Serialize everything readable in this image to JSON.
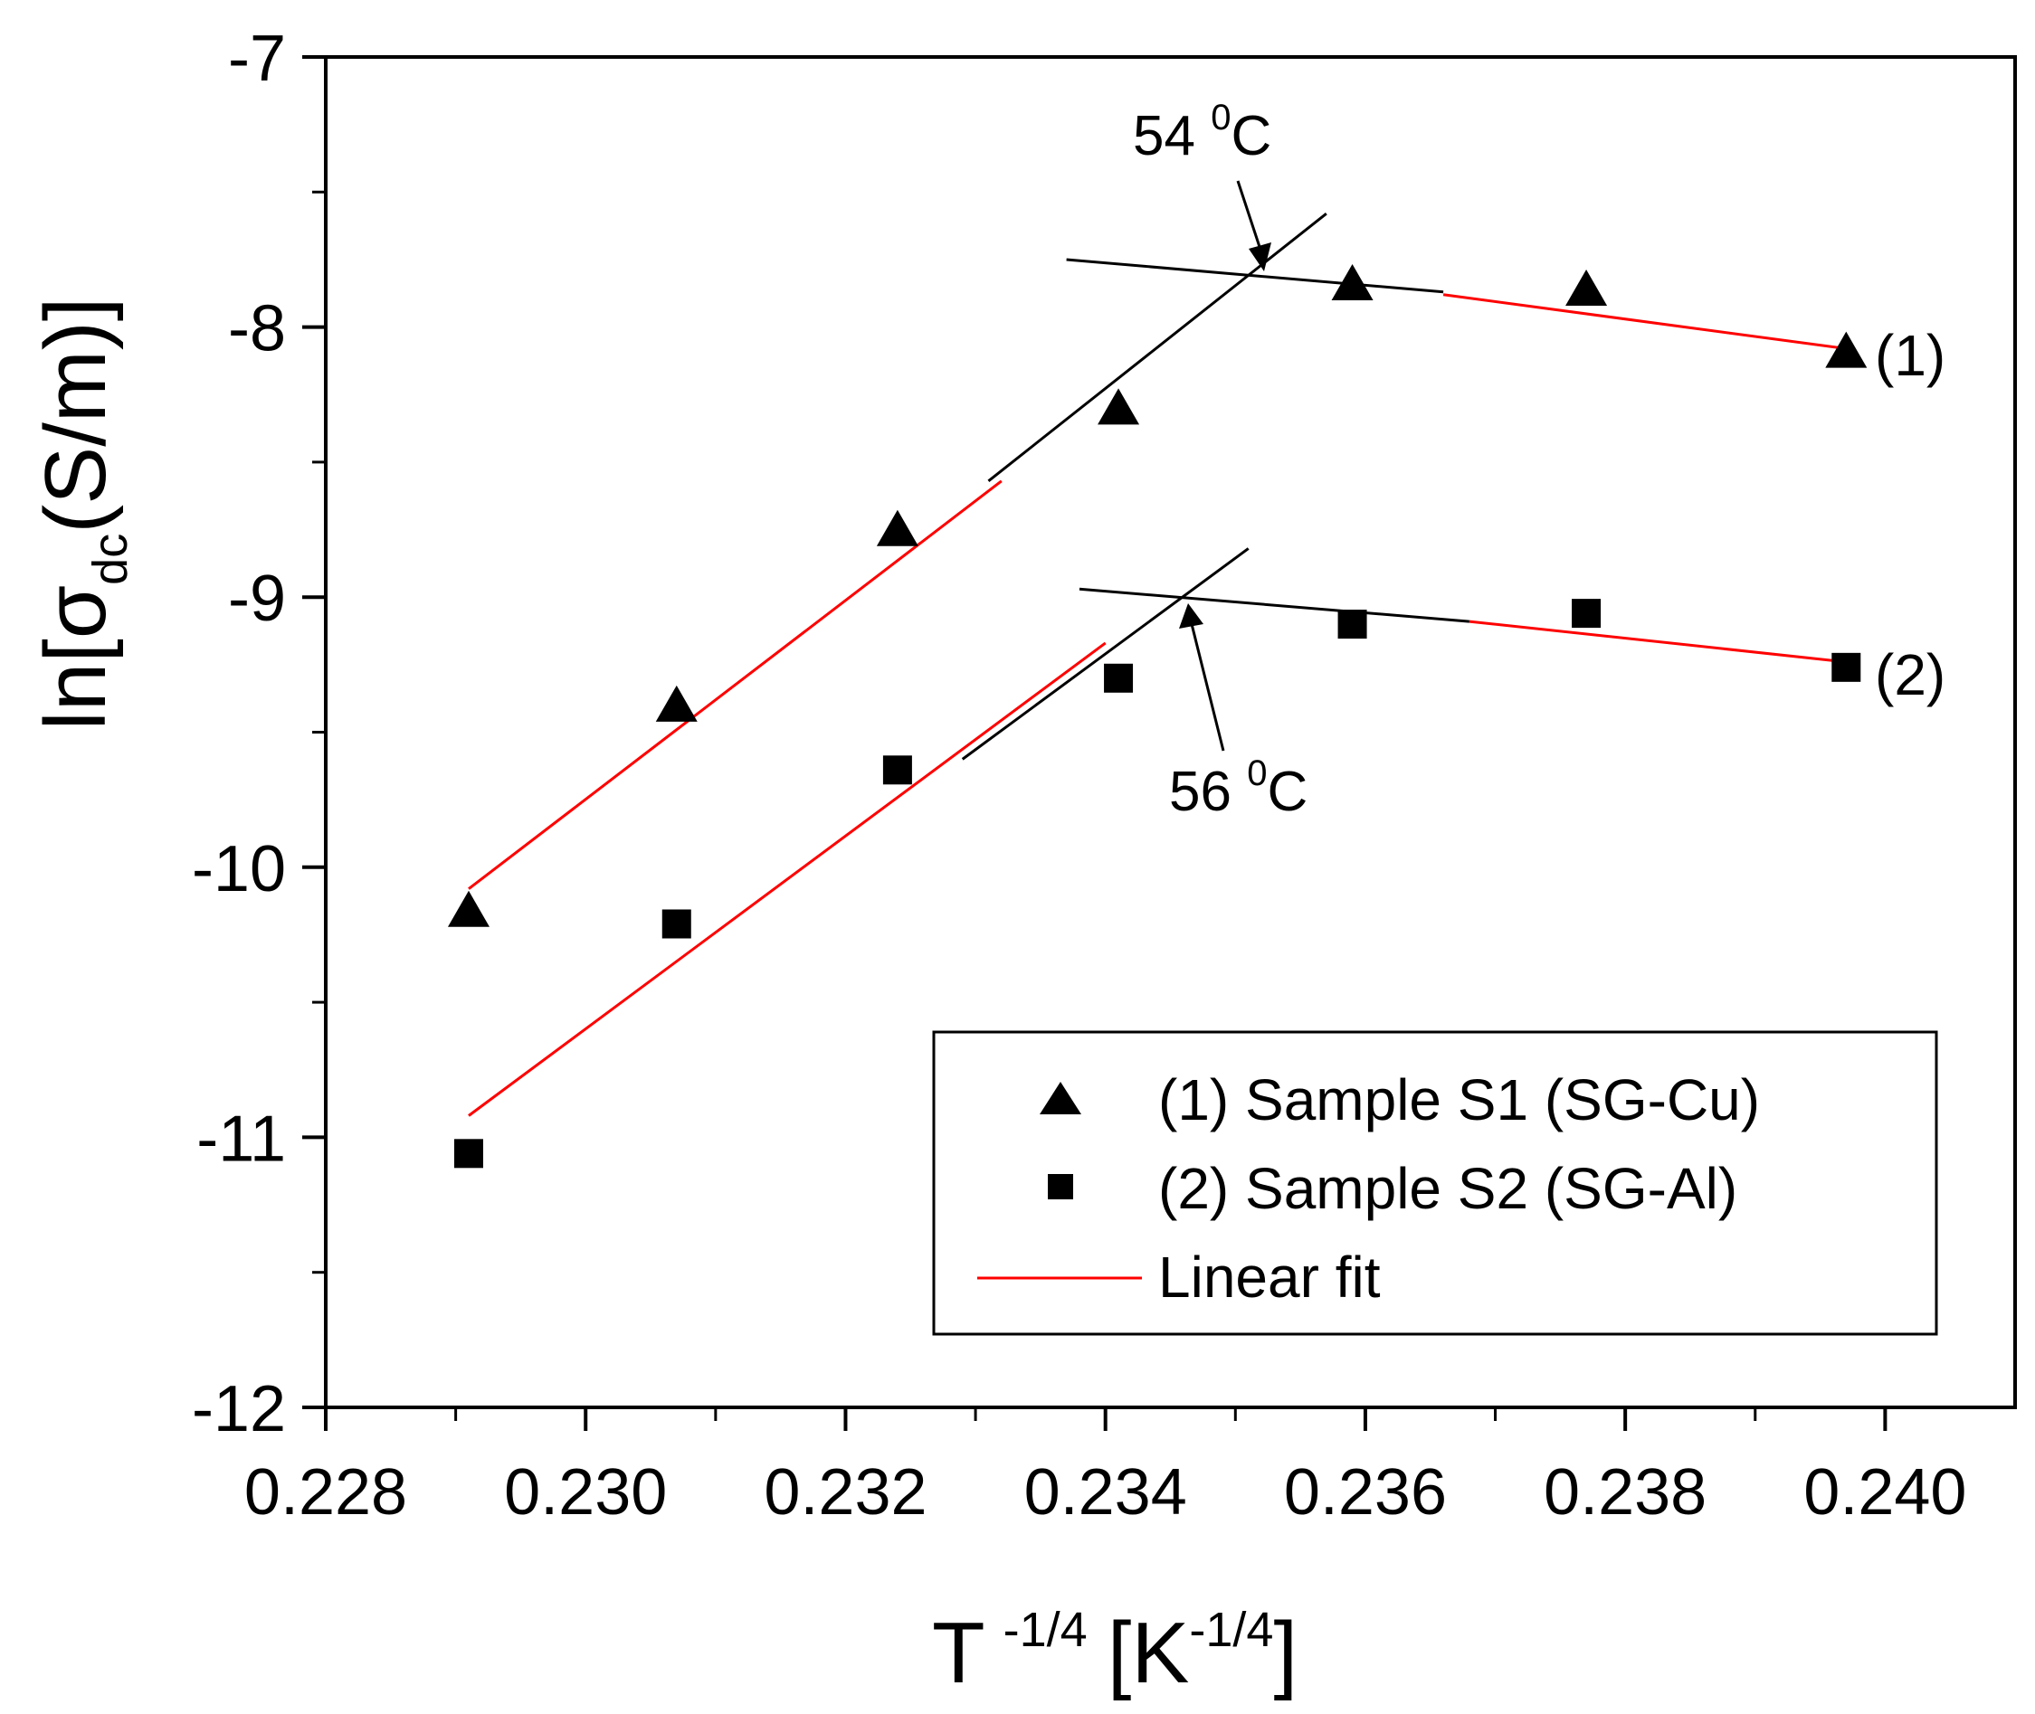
{
  "chart_data": {
    "type": "scatter",
    "xlabel": {
      "main": "T",
      "exponent": "-1/4",
      "unit_open": "[K",
      "unit_exponent": "-1/4",
      "unit_close": "]"
    },
    "ylabel": {
      "prefix": "ln[",
      "symbol": "σ",
      "subscript": "dc",
      "suffix": "(S/m)]"
    },
    "xlim": [
      0.228,
      0.241
    ],
    "ylim": [
      -12,
      -7
    ],
    "xticks": [
      {
        "value": 0.228,
        "label": "0.228"
      },
      {
        "value": 0.23,
        "label": "0.230"
      },
      {
        "value": 0.232,
        "label": "0.232"
      },
      {
        "value": 0.234,
        "label": "0.234"
      },
      {
        "value": 0.236,
        "label": "0.236"
      },
      {
        "value": 0.238,
        "label": "0.238"
      },
      {
        "value": 0.24,
        "label": "0.240"
      }
    ],
    "yticks": [
      {
        "value": -7,
        "label": "-7"
      },
      {
        "value": -8,
        "label": "-8"
      },
      {
        "value": -9,
        "label": "-9"
      },
      {
        "value": -10,
        "label": "-10"
      },
      {
        "value": -11,
        "label": "-11"
      },
      {
        "value": -12,
        "label": "-12"
      }
    ],
    "series": [
      {
        "name": "(1) Sample S1 (SG-Cu)",
        "label": "(1)",
        "marker": "triangle",
        "x": [
          0.2291,
          0.2307,
          0.2324,
          0.2341,
          0.2359,
          0.2377,
          0.2397
        ],
        "y": [
          -10.17,
          -9.41,
          -8.76,
          -8.31,
          -7.85,
          -7.87,
          -8.1
        ]
      },
      {
        "name": "(2) Sample S2 (SG-Al)",
        "label": "(2)",
        "marker": "square",
        "x": [
          0.2291,
          0.2307,
          0.2324,
          0.2341,
          0.2359,
          0.2377,
          0.2397
        ],
        "y": [
          -11.06,
          -10.21,
          -9.64,
          -9.3,
          -9.1,
          -9.06,
          -9.26
        ]
      }
    ],
    "fit_lines": [
      {
        "name": "Linear fit",
        "color": "#ff0000",
        "x": [
          0.2291,
          0.2332
        ],
        "y": [
          -10.08,
          -8.57
        ]
      },
      {
        "name": "Linear fit",
        "color": "#ff0000",
        "x": [
          0.2366,
          0.2397
        ],
        "y": [
          -7.88,
          -8.08
        ]
      },
      {
        "name": "Linear fit",
        "color": "#ff0000",
        "x": [
          0.2291,
          0.234
        ],
        "y": [
          -10.92,
          -9.17
        ]
      },
      {
        "name": "Linear fit",
        "color": "#ff0000",
        "x": [
          0.2368,
          0.2397
        ],
        "y": [
          -9.09,
          -9.24
        ]
      }
    ],
    "guide_lines": [
      {
        "color": "#000000",
        "x": [
          0.2331,
          0.2357
        ],
        "y": [
          -8.57,
          -7.58
        ]
      },
      {
        "color": "#000000",
        "x": [
          0.2337,
          0.2366
        ],
        "y": [
          -7.75,
          -7.87
        ]
      },
      {
        "color": "#000000",
        "x": [
          0.2329,
          0.2351
        ],
        "y": [
          -9.6,
          -8.82
        ]
      },
      {
        "color": "#000000",
        "x": [
          0.2338,
          0.2368
        ],
        "y": [
          -8.97,
          -9.09
        ]
      }
    ],
    "annotations": [
      {
        "text": "54 ",
        "sup": "0",
        "unit": "C",
        "x": 0.2351,
        "y": -7.75
      },
      {
        "text": "56 ",
        "sup": "0",
        "unit": "C",
        "x": 0.2346,
        "y": -9.0
      }
    ],
    "legend": {
      "position": "bottom-right",
      "entries": [
        {
          "marker": "triangle",
          "label": "(1) Sample S1 (SG-Cu)"
        },
        {
          "marker": "square",
          "label": "(2) Sample S2 (SG-Al)"
        },
        {
          "marker": "line",
          "color": "#ff0000",
          "label": "Linear fit"
        }
      ]
    }
  }
}
